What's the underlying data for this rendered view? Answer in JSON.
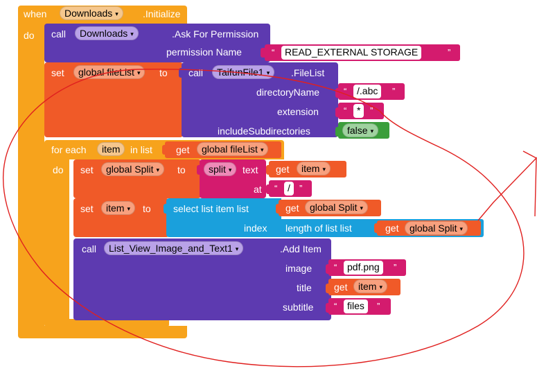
{
  "outer": {
    "when_kw": "when",
    "component": "Downloads",
    "event": ".Initialize",
    "do_kw": "do"
  },
  "permission": {
    "call_kw": "call",
    "component": "Downloads",
    "method": ".Ask For Permission",
    "param_label": "permission Name",
    "value": "READ_EXTERNAL STORAGE"
  },
  "set_filelist": {
    "set_kw": "set",
    "var": "global fileList",
    "to_kw": "to",
    "call_kw": "call",
    "component": "TaifunFile1",
    "method": ".FileList",
    "directory_label": "directoryName",
    "directory_value": "/.abc",
    "extension_label": "extension",
    "extension_value": "*",
    "subdirs_label": "includeSubdirectories",
    "subdirs_value": "false"
  },
  "foreach": {
    "for_each_kw": "for each",
    "item_var": "item",
    "in_list_kw": "in list",
    "get_kw": "get",
    "list_var": "global fileList",
    "do_kw": "do"
  },
  "set_split": {
    "set_kw": "set",
    "var": "global Split",
    "to_kw": "to",
    "split_op": "split",
    "text_kw": "text",
    "get_kw": "get",
    "get_var": "item",
    "at_kw": "at",
    "at_value": "/"
  },
  "set_item": {
    "set_kw": "set",
    "var": "item",
    "to_kw": "to",
    "select_label": "select list item  list",
    "get_kw": "get",
    "get_var": "global Split",
    "index_label": "index",
    "length_label": "length of list  list",
    "get_kw2": "get",
    "get_var2": "global Split"
  },
  "add_item": {
    "call_kw": "call",
    "component": "List_View_Image_and_Text1",
    "method": ".Add Item",
    "image_label": "image",
    "image_value": "pdf.png",
    "title_label": "title",
    "title_get_kw": "get",
    "title_get_var": "item",
    "subtitle_label": "subtitle",
    "subtitle_value": "files"
  },
  "glyphs": {
    "open_quote": "“",
    "close_quote": "”",
    "dropdown": "▾"
  },
  "colors": {
    "event_orange": "#f7a31c",
    "component_purple": "#5d3ab0",
    "variable_orange": "#f05a28",
    "text_pink": "#d41b6e",
    "list_cyan": "#1aa0dc",
    "logic_green": "#3b9e3b",
    "annotation_red": "#e0201f"
  }
}
